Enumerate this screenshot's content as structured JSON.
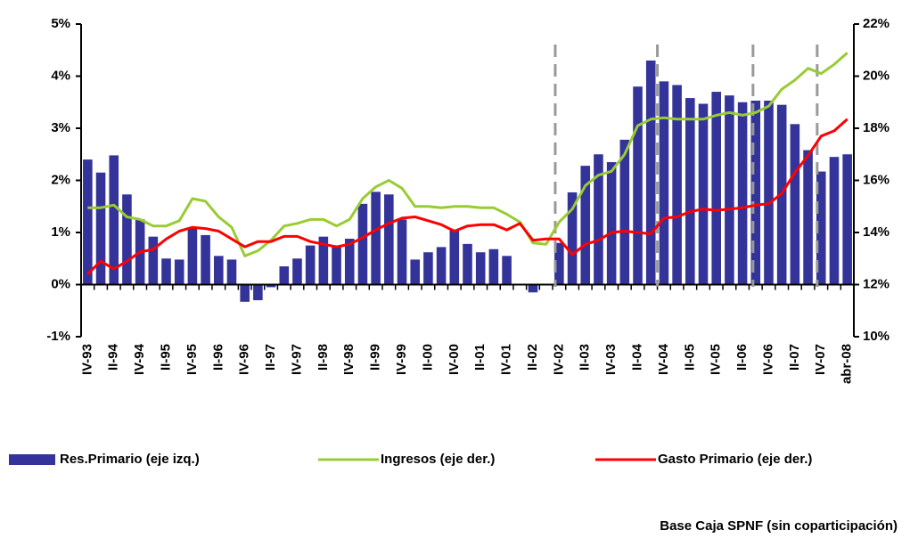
{
  "chart_data": {
    "type": "bar_line",
    "categories": [
      "IV-93",
      null,
      "II-94",
      null,
      "IV-94",
      null,
      "II-95",
      null,
      "IV-95",
      null,
      "II-96",
      null,
      "IV-96",
      null,
      "II-97",
      null,
      "IV-97",
      null,
      "II-98",
      null,
      "IV-98",
      null,
      "II-99",
      null,
      "IV-99",
      null,
      "II-00",
      null,
      "IV-00",
      null,
      "II-01",
      null,
      "IV-01",
      null,
      "II-02",
      null,
      "IV-02",
      null,
      "II-03",
      null,
      "IV-03",
      null,
      "II-04",
      null,
      "IV-04",
      null,
      "II-05",
      null,
      "IV-05",
      null,
      "II-06",
      null,
      "IV-06",
      null,
      "II-07",
      null,
      "IV-07",
      null,
      "abr-08"
    ],
    "series": [
      {
        "name": "Res.Primario (eje izq.)",
        "color": "#333399",
        "kind": "bar",
        "axis": "y",
        "values": [
          2.4,
          2.15,
          2.48,
          1.73,
          1.25,
          0.92,
          0.5,
          0.48,
          1.1,
          0.95,
          0.55,
          0.48,
          -0.33,
          -0.3,
          -0.05,
          0.35,
          0.5,
          0.75,
          0.92,
          0.75,
          0.88,
          1.55,
          1.78,
          1.73,
          1.25,
          0.48,
          0.62,
          0.72,
          1.05,
          0.78,
          0.62,
          0.68,
          0.55,
          0,
          -0.15,
          0,
          0.8,
          1.77,
          2.28,
          2.5,
          2.35,
          2.78,
          3.8,
          4.3,
          3.9,
          3.83,
          3.58,
          3.47,
          3.7,
          3.63,
          3.5,
          3.53,
          3.53,
          3.45,
          3.08,
          2.58,
          2.17,
          2.45,
          2.5
        ]
      },
      {
        "name": "Ingresos (eje der.)",
        "color": "#99cc33",
        "kind": "line",
        "axis": "y2",
        "values": [
          14.95,
          14.95,
          15.05,
          14.6,
          14.5,
          14.25,
          14.25,
          14.45,
          15.3,
          15.2,
          14.6,
          14.2,
          13.1,
          13.3,
          13.7,
          14.25,
          14.35,
          14.5,
          14.5,
          14.25,
          14.5,
          15.3,
          15.75,
          16.0,
          15.7,
          15.0,
          15.0,
          14.95,
          15.0,
          15.0,
          14.95,
          14.95,
          14.7,
          14.4,
          13.6,
          13.55,
          14.4,
          14.9,
          15.8,
          16.2,
          16.35,
          17.0,
          18.1,
          18.35,
          18.4,
          18.35,
          18.35,
          18.35,
          18.5,
          18.6,
          18.5,
          18.6,
          18.85,
          19.5,
          19.85,
          20.3,
          20.1,
          20.45,
          20.9
        ]
      },
      {
        "name": "Gasto Primario (eje der.)",
        "color": "#ff0000",
        "kind": "line",
        "axis": "y2",
        "values": [
          12.4,
          12.9,
          12.6,
          12.9,
          13.25,
          13.35,
          13.75,
          14.05,
          14.2,
          14.15,
          14.05,
          13.75,
          13.45,
          13.65,
          13.65,
          13.85,
          13.85,
          13.65,
          13.55,
          13.45,
          13.55,
          13.8,
          14.1,
          14.35,
          14.55,
          14.6,
          14.45,
          14.3,
          14.05,
          14.25,
          14.3,
          14.3,
          14.1,
          14.35,
          13.7,
          13.75,
          13.75,
          13.15,
          13.55,
          13.7,
          14.0,
          14.05,
          14.0,
          13.95,
          14.55,
          14.6,
          14.8,
          14.9,
          14.85,
          14.9,
          14.95,
          15.05,
          15.1,
          15.5,
          16.3,
          16.95,
          17.7,
          17.9,
          18.35
        ]
      }
    ],
    "ylim": [
      -1,
      5
    ],
    "yticks": [
      {
        "value": -1,
        "label": "-1%"
      },
      {
        "value": 0,
        "label": "0%"
      },
      {
        "value": 1,
        "label": "1%"
      },
      {
        "value": 2,
        "label": "2%"
      },
      {
        "value": 3,
        "label": "3%"
      },
      {
        "value": 4,
        "label": "4%"
      },
      {
        "value": 5,
        "label": "5%"
      }
    ],
    "y2lim": [
      10,
      22
    ],
    "y2ticks": [
      {
        "value": 10,
        "label": "10%"
      },
      {
        "value": 12,
        "label": "12%"
      },
      {
        "value": 14,
        "label": "14%"
      },
      {
        "value": 16,
        "label": "16%"
      },
      {
        "value": 18,
        "label": "18%"
      },
      {
        "value": 20,
        "label": "20%"
      },
      {
        "value": 22,
        "label": "22%"
      }
    ],
    "note": "Base Caja SPNF (sin coparticipación)"
  }
}
